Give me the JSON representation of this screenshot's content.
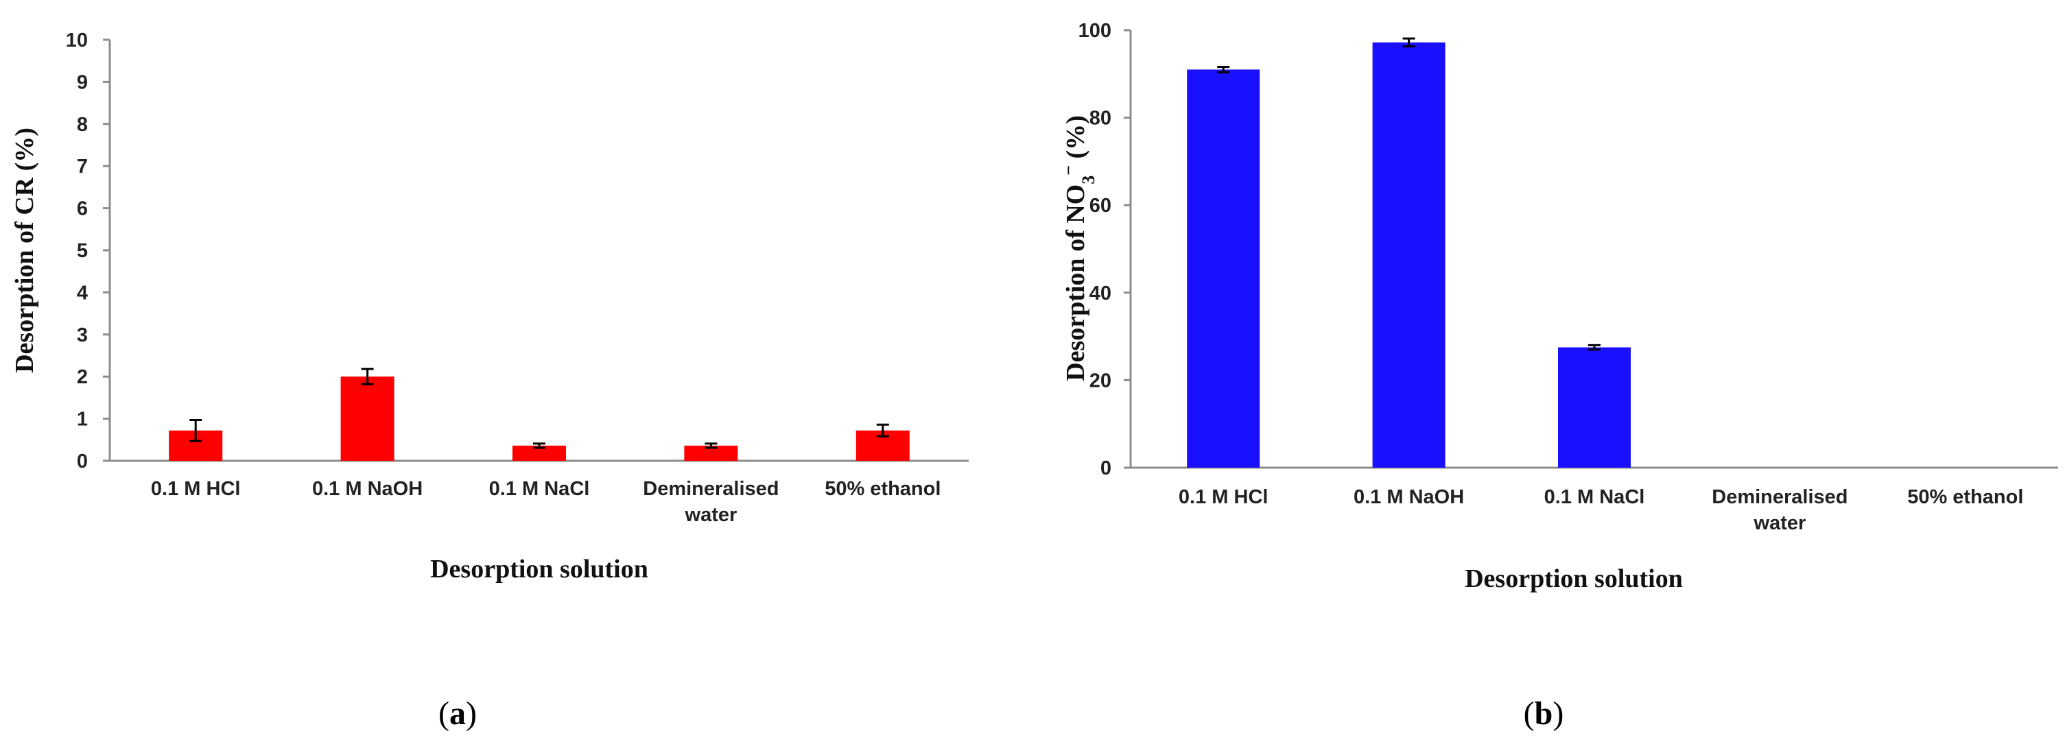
{
  "chart_data": [
    {
      "type": "bar",
      "panel_label": "a",
      "categories": [
        [
          "0.1 M HCl"
        ],
        [
          "0.1 M NaOH"
        ],
        [
          "0.1 M NaCl"
        ],
        [
          "Demineralised",
          "water"
        ],
        [
          "50% ethanol"
        ]
      ],
      "values": [
        0.72,
        2.0,
        0.36,
        0.36,
        0.72
      ],
      "errors": [
        0.25,
        0.18,
        0.05,
        0.05,
        0.14
      ],
      "title": "",
      "xlabel": "Desorption solution",
      "ylabel": "Desorption of CR (%)",
      "ylabel_parts": [
        {
          "text": "Desorption of CR (%)",
          "sup": false
        }
      ],
      "ylim": [
        0,
        10
      ],
      "yticks": [
        0,
        1,
        2,
        3,
        4,
        5,
        6,
        7,
        8,
        9,
        10
      ],
      "color": "#ff0000",
      "grid": false,
      "legend": "none"
    },
    {
      "type": "bar",
      "panel_label": "b",
      "categories": [
        [
          "0.1 M HCl"
        ],
        [
          "0.1 M NaOH"
        ],
        [
          "0.1 M NaCl"
        ],
        [
          "Demineralised",
          "water"
        ],
        [
          "50% ethanol"
        ]
      ],
      "values": [
        91,
        97.2,
        27.5,
        0,
        0
      ],
      "errors": [
        0.6,
        0.9,
        0.5,
        0,
        0
      ],
      "title": "",
      "xlabel": "Desorption solution",
      "ylabel": "Desorption of NO3− (%)",
      "ylabel_parts": [
        {
          "text": "Desorption of NO",
          "sup": false
        },
        {
          "text": "3",
          "sub": true
        },
        {
          "text": "−",
          "sup": true
        },
        {
          "text": " (%)",
          "sup": false
        }
      ],
      "ylim": [
        0,
        100
      ],
      "yticks": [
        0,
        20,
        40,
        60,
        80,
        100
      ],
      "color": "#1a0fff",
      "grid": false,
      "legend": "none"
    }
  ]
}
